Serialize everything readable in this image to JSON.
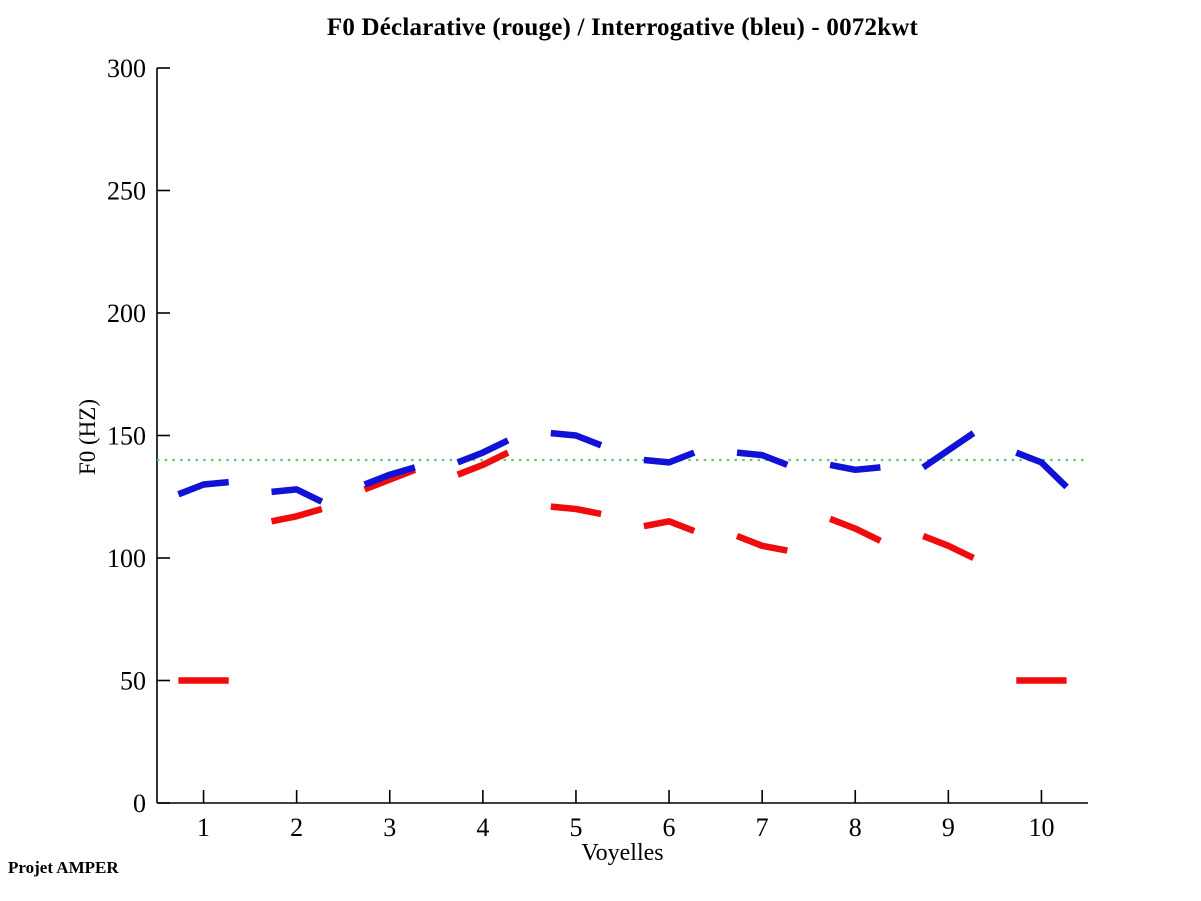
{
  "footer": {
    "credit": "Projet AMPER"
  },
  "colors": {
    "axis": "#000000",
    "declarative_red": "#f00c0c",
    "interrogative_blue": "#1212d6",
    "reference_green": "#55cc77",
    "background": "#ffffff"
  },
  "chart_data": {
    "type": "line",
    "title": "F0 Déclarative (rouge) / Interrogative (bleu) - 0072kwt",
    "xlabel": "Voyelles",
    "ylabel": "F0 (HZ)",
    "xlim": [
      0.5,
      10.5
    ],
    "ylim": [
      0,
      300
    ],
    "xticks": [
      1,
      2,
      3,
      4,
      5,
      6,
      7,
      8,
      9,
      10
    ],
    "yticks": [
      0,
      50,
      100,
      150,
      200,
      250,
      300
    ],
    "grid": false,
    "legend_position": "none",
    "reference_line": {
      "y": 140,
      "style": "dotted",
      "color": "#55cc77"
    },
    "segment_halfwidth": 0.27,
    "series": [
      {
        "name": "Déclarative (rouge)",
        "color": "#f00c0c",
        "segments": [
          {
            "x": 1,
            "y": [
              50,
              50,
              50
            ]
          },
          {
            "x": 2,
            "y": [
              115,
              117,
              120
            ]
          },
          {
            "x": 3,
            "y": [
              128,
              132,
              136
            ]
          },
          {
            "x": 4,
            "y": [
              134,
              138,
              143
            ]
          },
          {
            "x": 5,
            "y": [
              121,
              120,
              118
            ]
          },
          {
            "x": 6,
            "y": [
              113,
              115,
              111
            ]
          },
          {
            "x": 7,
            "y": [
              109,
              105,
              103
            ]
          },
          {
            "x": 8,
            "y": [
              116,
              112,
              107
            ]
          },
          {
            "x": 9,
            "y": [
              109,
              105,
              100
            ]
          },
          {
            "x": 10,
            "y": [
              50,
              50,
              50
            ]
          }
        ]
      },
      {
        "name": "Interrogative (bleu)",
        "color": "#1212d6",
        "segments": [
          {
            "x": 1,
            "y": [
              126,
              130,
              131
            ]
          },
          {
            "x": 2,
            "y": [
              127,
              128,
              123
            ]
          },
          {
            "x": 3,
            "y": [
              130,
              134,
              137
            ]
          },
          {
            "x": 4,
            "y": [
              139,
              143,
              148
            ]
          },
          {
            "x": 5,
            "y": [
              151,
              150,
              146
            ]
          },
          {
            "x": 6,
            "y": [
              140,
              139,
              143
            ]
          },
          {
            "x": 7,
            "y": [
              143,
              142,
              138
            ]
          },
          {
            "x": 8,
            "y": [
              138,
              136,
              137
            ]
          },
          {
            "x": 9,
            "y": [
              137,
              144,
              151
            ]
          },
          {
            "x": 10,
            "y": [
              143,
              139,
              129
            ]
          }
        ]
      }
    ]
  }
}
